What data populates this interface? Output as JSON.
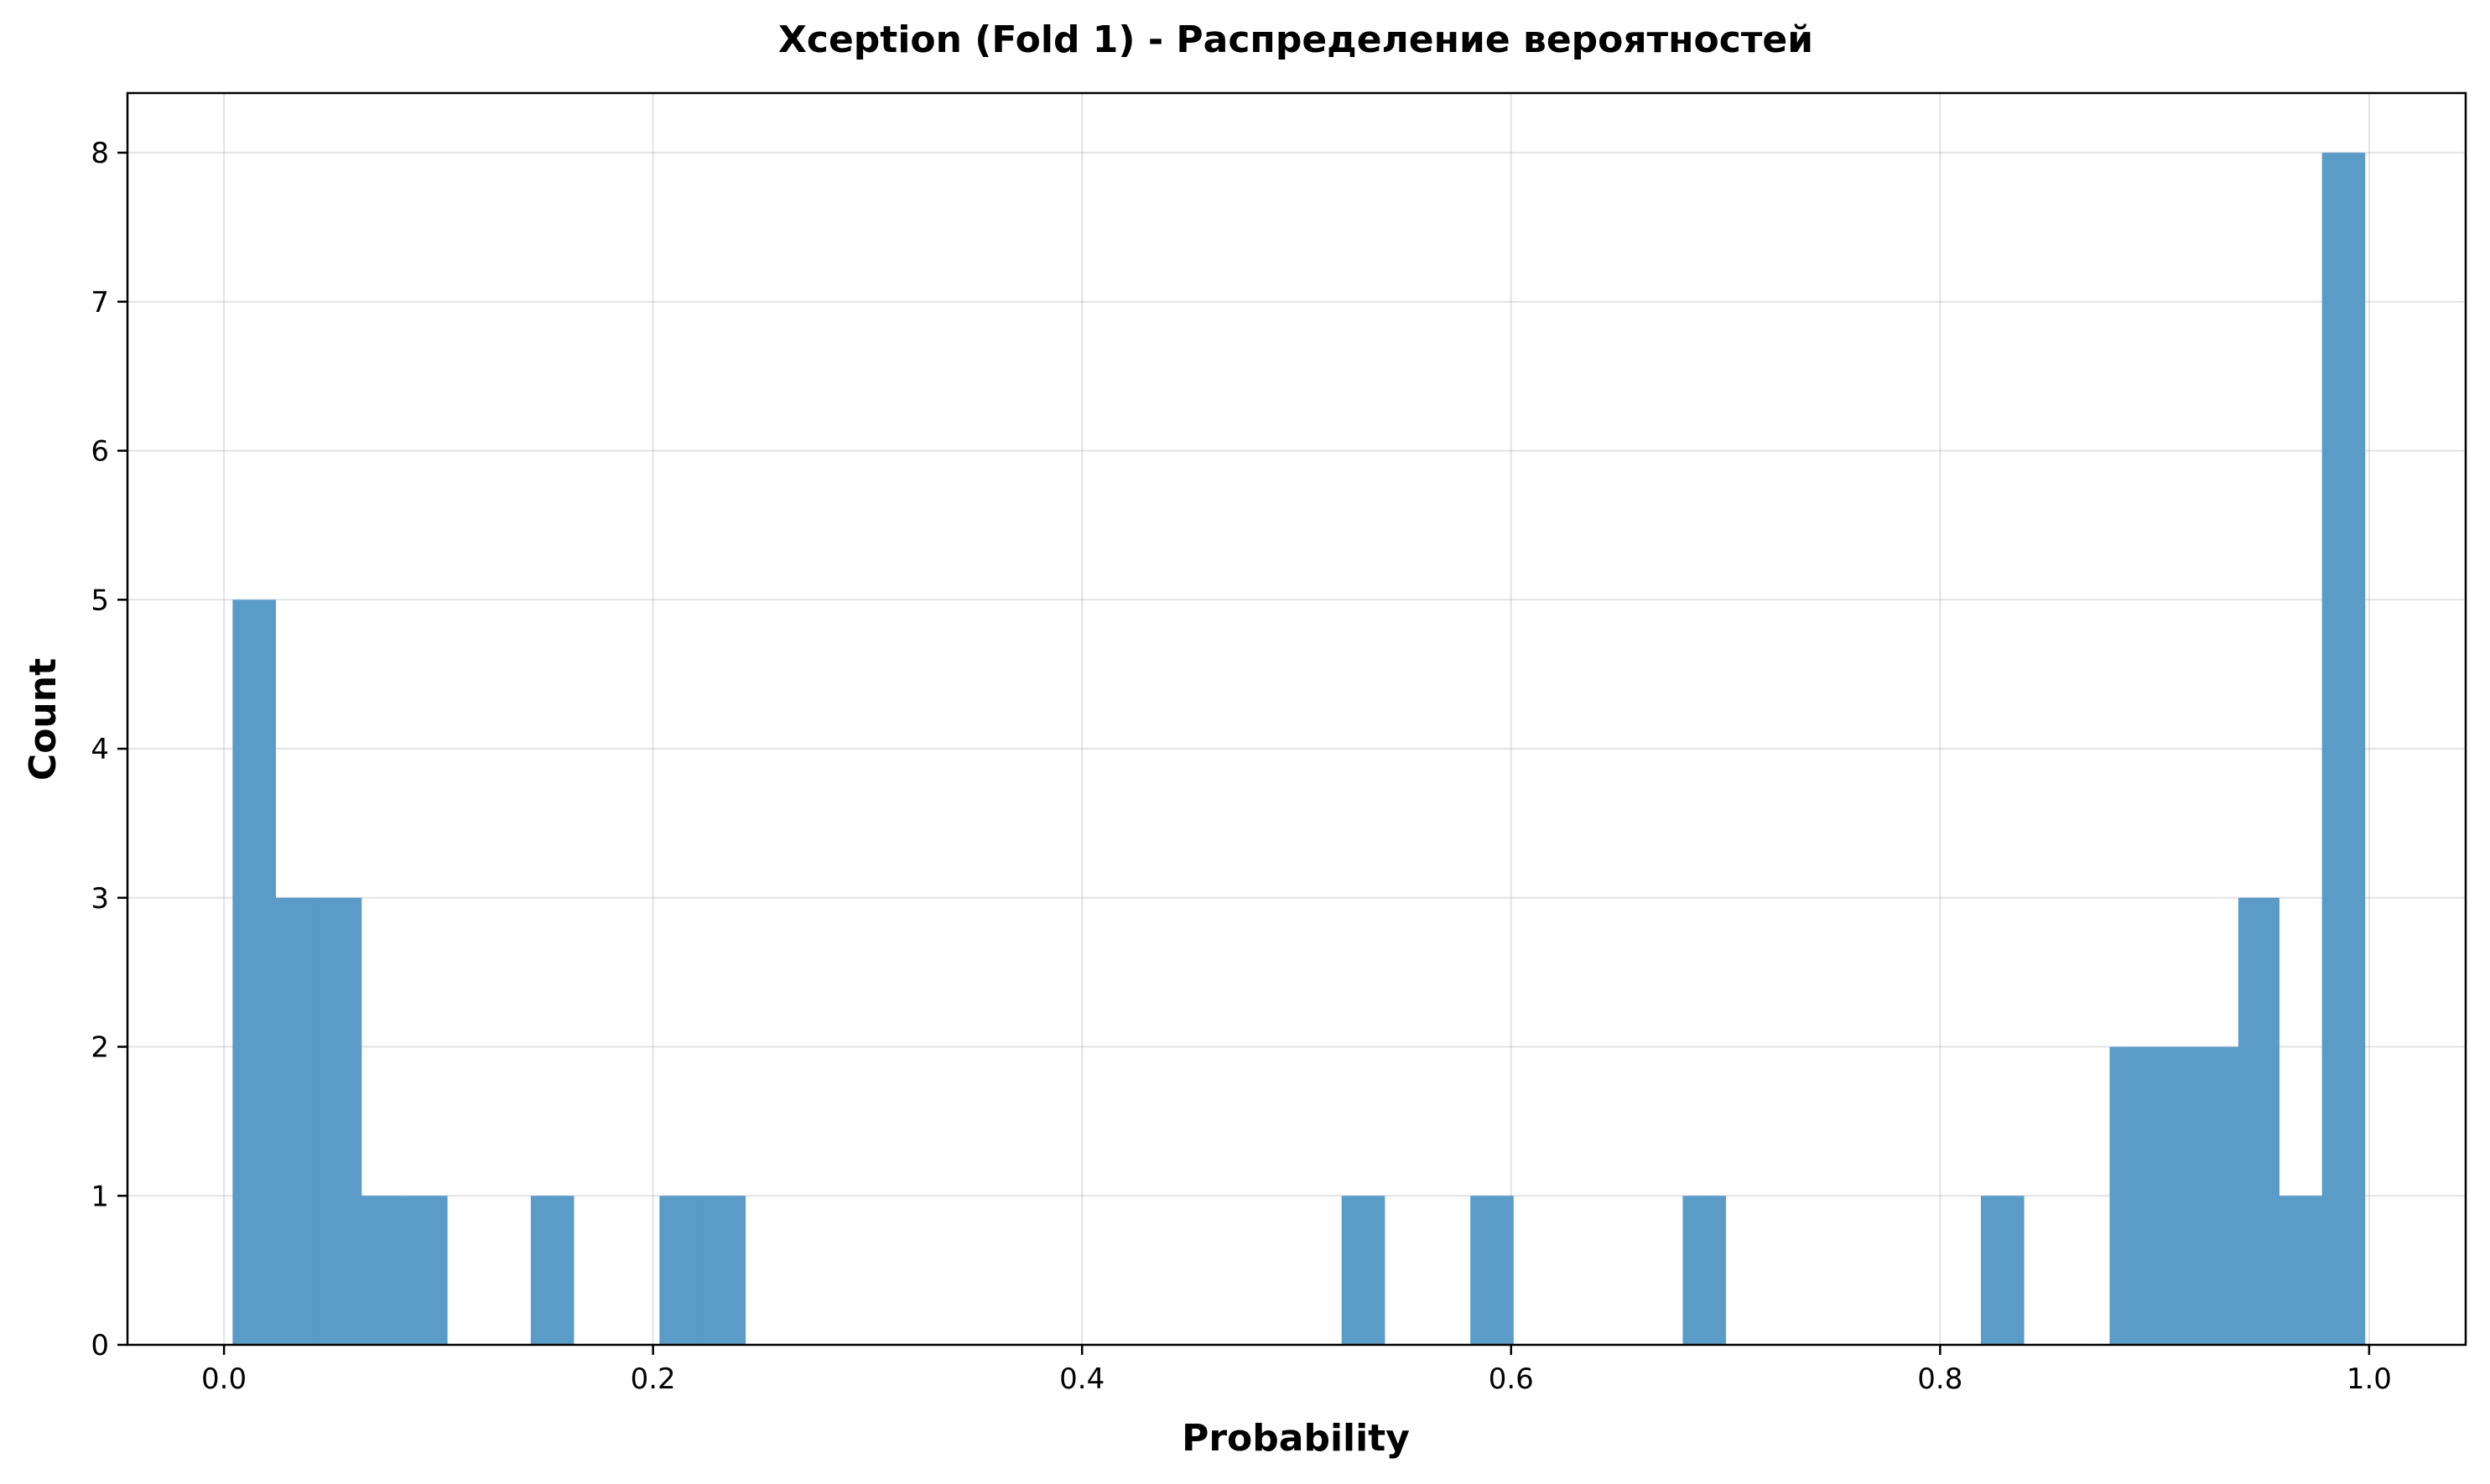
{
  "chart_data": {
    "type": "bar",
    "title": "Xception (Fold 1) - Распределение вероятностей",
    "xlabel": "Probability",
    "ylabel": "Count",
    "xlim": [
      -0.045,
      1.045
    ],
    "ylim": [
      0,
      8.4
    ],
    "xticks": [
      0.0,
      0.2,
      0.4,
      0.6,
      0.8,
      1.0
    ],
    "xtick_labels": [
      "0.0",
      "0.2",
      "0.4",
      "0.6",
      "0.8",
      "1.0"
    ],
    "yticks": [
      0,
      1,
      2,
      3,
      4,
      5,
      6,
      7,
      8
    ],
    "ytick_labels": [
      "0",
      "1",
      "2",
      "3",
      "4",
      "5",
      "6",
      "7",
      "8"
    ],
    "grid": true,
    "bar_color": "#5b9bc8",
    "bins": [
      {
        "x0": 0.004,
        "x1": 0.024,
        "count": 5
      },
      {
        "x0": 0.024,
        "x1": 0.044,
        "count": 3
      },
      {
        "x0": 0.044,
        "x1": 0.064,
        "count": 3
      },
      {
        "x0": 0.064,
        "x1": 0.084,
        "count": 1
      },
      {
        "x0": 0.084,
        "x1": 0.104,
        "count": 1
      },
      {
        "x0": 0.143,
        "x1": 0.163,
        "count": 1
      },
      {
        "x0": 0.203,
        "x1": 0.223,
        "count": 1
      },
      {
        "x0": 0.223,
        "x1": 0.243,
        "count": 1
      },
      {
        "x0": 0.521,
        "x1": 0.541,
        "count": 1
      },
      {
        "x0": 0.581,
        "x1": 0.601,
        "count": 1
      },
      {
        "x0": 0.68,
        "x1": 0.7,
        "count": 1
      },
      {
        "x0": 0.819,
        "x1": 0.839,
        "count": 1
      },
      {
        "x0": 0.879,
        "x1": 0.899,
        "count": 2
      },
      {
        "x0": 0.899,
        "x1": 0.919,
        "count": 2
      },
      {
        "x0": 0.919,
        "x1": 0.939,
        "count": 2
      },
      {
        "x0": 0.939,
        "x1": 0.958,
        "count": 3
      },
      {
        "x0": 0.958,
        "x1": 0.978,
        "count": 1
      },
      {
        "x0": 0.978,
        "x1": 0.998,
        "count": 8
      }
    ]
  }
}
